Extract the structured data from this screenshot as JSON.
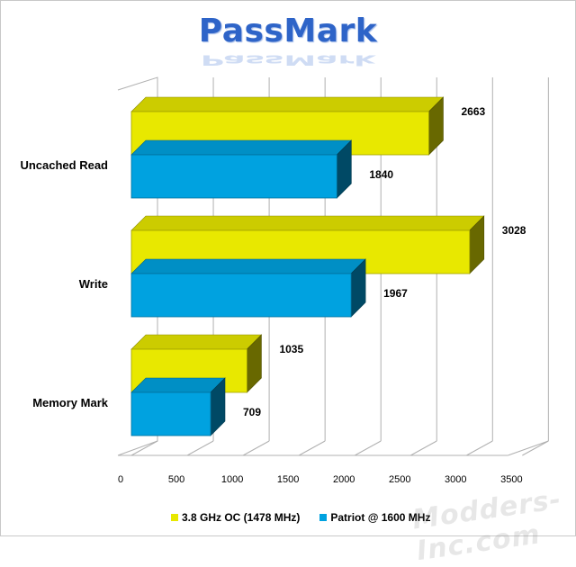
{
  "chart_data": {
    "type": "bar",
    "orientation": "horizontal",
    "title": "PassMark",
    "categories": [
      "Uncached Read",
      "Write",
      "Memory Mark"
    ],
    "series": [
      {
        "name": "3.8 GHz OC (1478 MHz)",
        "values": [
          2663,
          3028,
          1035
        ],
        "color": "#e8e800"
      },
      {
        "name": "Patriot @ 1600  MHz",
        "values": [
          1840,
          1967,
          709
        ],
        "color": "#00a2e0"
      }
    ],
    "xlim": [
      0,
      3500
    ],
    "x_ticks": [
      "0",
      "500",
      "1000",
      "1500",
      "2000",
      "2500",
      "3000",
      "3500"
    ],
    "xlabel": "",
    "ylabel": "",
    "grid": true,
    "legend_position": "bottom"
  },
  "watermark": "Modders-Inc.com"
}
